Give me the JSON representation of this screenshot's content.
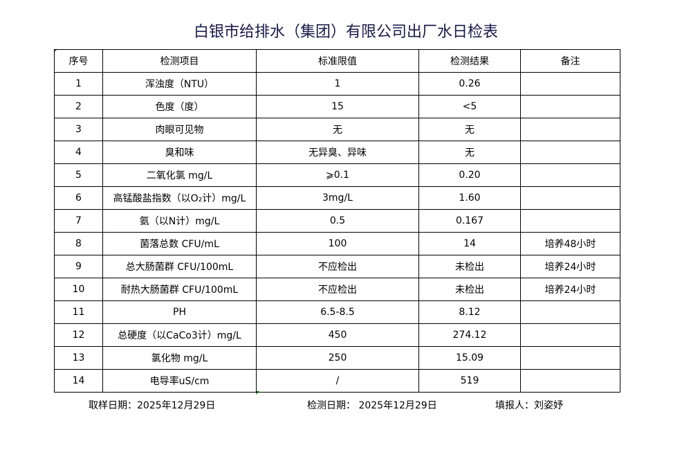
{
  "title": "白银市给排水（集团）有限公司出厂水日检表",
  "headers": [
    "序号",
    "检测项目",
    "标准限值",
    "检测结果",
    "备注"
  ],
  "rows": [
    [
      "1",
      "浑浊度（NTU）",
      "1",
      "0.26",
      ""
    ],
    [
      "2",
      "色度（度）",
      "15",
      "<5",
      ""
    ],
    [
      "3",
      "肉眼可见物",
      "无",
      "无",
      ""
    ],
    [
      "4",
      "臭和味",
      "无异臭、异味",
      "无",
      ""
    ],
    [
      "5",
      "二氧化氯 mg/L",
      "⩾0.1",
      "0.20",
      ""
    ],
    [
      "6",
      "高锰酸盐指数（以O₂计）mg/L",
      "3mg/L",
      "1.60",
      ""
    ],
    [
      "7",
      "氨（以N计）mg/L",
      "0.5",
      "0.167",
      ""
    ],
    [
      "8",
      "菌落总数 CFU/mL",
      "100",
      "14",
      "培养48小时"
    ],
    [
      "9",
      "总大肠菌群 CFU/100mL",
      "不应检出",
      "未检出",
      "培养24小时"
    ],
    [
      "10",
      "耐热大肠菌群 CFU/100mL",
      "不应检出",
      "未检出",
      "培养24小时"
    ],
    [
      "11",
      "PH",
      "6.5-8.5",
      "8.12",
      ""
    ],
    [
      "12",
      "总硬度（以CaCo3计）mg/L",
      "450",
      "274.12",
      ""
    ],
    [
      "13",
      "氯化物 mg/L",
      "250",
      "15.09",
      ""
    ],
    [
      "14",
      "电导率uS/cm",
      "/",
      "519",
      ""
    ]
  ],
  "footer": {
    "sampling": "取样日期：2025年12月29日",
    "testing": "检测日期：  2025年12月29日",
    "reporter": "填报人：刘姿妤"
  }
}
